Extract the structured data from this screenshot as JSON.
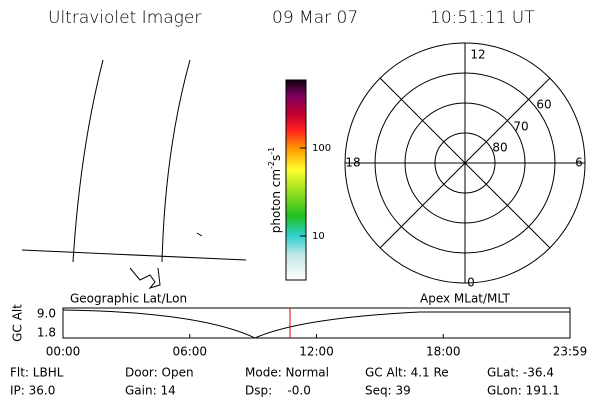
{
  "header": {
    "title": "Ultraviolet Imager",
    "date": "09 Mar 07",
    "time": "10:51:11 UT"
  },
  "colorbar": {
    "label": {
      "base": "photon cm",
      "exp1": "-2",
      "unit": "s",
      "exp2": "-1"
    },
    "ticks": [
      "100",
      "10"
    ]
  },
  "polar": {
    "mlt_labels": {
      "top": "12",
      "left": "18",
      "right": "6",
      "bottom": "0"
    },
    "lat_labels": [
      "60",
      "70",
      "80"
    ]
  },
  "timeline": {
    "left_label": "Geographic Lat/Lon",
    "right_label": "Apex MLat/MLT",
    "axis_label": "GC Alt",
    "y_labels": [
      "9.0",
      "1.8"
    ],
    "x_labels": [
      "00:00",
      "06:00",
      "12:00",
      "18:00",
      "23:59"
    ]
  },
  "info": [
    [
      "Flt: LBHL",
      "Door: Open",
      "Mode: Normal",
      "GC Alt: 4.1 Re",
      "GLat: -36.4"
    ],
    [
      "IP: 36.0",
      "Gain: 14",
      "Dsp:    -0.0",
      "Seq: 39",
      "GLon: 191.1"
    ]
  ]
}
